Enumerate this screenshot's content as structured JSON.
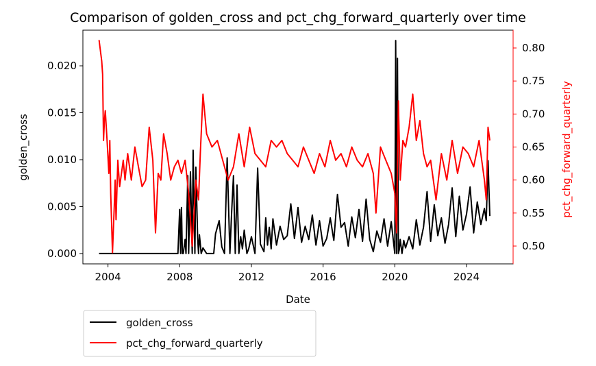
{
  "chart_data": {
    "type": "line",
    "title": "Comparison of golden_cross and pct_chg_forward_quarterly over time",
    "xlabel": "Date",
    "ylabel_left": "golden_cross",
    "ylabel_right": "pct_chg_forward_quarterly",
    "x_ticks": [
      "2004",
      "2008",
      "2012",
      "2016",
      "2020",
      "2024"
    ],
    "x_tick_values": [
      2004,
      2008,
      2012,
      2016,
      2020,
      2024
    ],
    "xlim": [
      2002.6,
      2026.6
    ],
    "y_left_ticks": [
      "0.000",
      "0.005",
      "0.010",
      "0.015",
      "0.020"
    ],
    "y_left_tick_values": [
      0,
      0.005,
      0.01,
      0.015,
      0.02
    ],
    "ylim_left": [
      -0.0011,
      0.0238
    ],
    "y_right_ticks": [
      "0.50",
      "0.55",
      "0.60",
      "0.65",
      "0.70",
      "0.75",
      "0.80"
    ],
    "y_right_tick_values": [
      0.5,
      0.55,
      0.6,
      0.65,
      0.7,
      0.75,
      0.8
    ],
    "ylim_right": [
      0.473,
      0.827
    ],
    "grid": false,
    "legend_placement": "below-left",
    "series": [
      {
        "name": "golden_cross",
        "color": "#000000",
        "axis": "left",
        "x": [
          2003.5,
          2007.9,
          2008.0,
          2008.05,
          2008.1,
          2008.15,
          2008.2,
          2008.3,
          2008.35,
          2008.45,
          2008.5,
          2008.6,
          2008.7,
          2008.75,
          2008.85,
          2008.9,
          2009.0,
          2009.05,
          2009.1,
          2009.2,
          2009.3,
          2009.5,
          2009.7,
          2009.9,
          2010.0,
          2010.2,
          2010.35,
          2010.5,
          2010.65,
          2010.8,
          2010.9,
          2011.0,
          2011.1,
          2011.2,
          2011.3,
          2011.4,
          2011.5,
          2011.6,
          2011.75,
          2011.85,
          2012.0,
          2012.2,
          2012.35,
          2012.5,
          2012.7,
          2012.8,
          2012.9,
          2013.0,
          2013.1,
          2013.2,
          2013.4,
          2013.6,
          2013.8,
          2014.0,
          2014.2,
          2014.4,
          2014.6,
          2014.8,
          2015.0,
          2015.2,
          2015.4,
          2015.6,
          2015.8,
          2016.0,
          2016.2,
          2016.4,
          2016.6,
          2016.8,
          2017.0,
          2017.2,
          2017.4,
          2017.6,
          2017.8,
          2018.0,
          2018.2,
          2018.4,
          2018.6,
          2018.8,
          2019.0,
          2019.2,
          2019.4,
          2019.6,
          2019.8,
          2020.0,
          2020.05,
          2020.1,
          2020.15,
          2020.2,
          2020.25,
          2020.3,
          2020.4,
          2020.5,
          2020.6,
          2020.8,
          2021.0,
          2021.2,
          2021.4,
          2021.6,
          2021.8,
          2022.0,
          2022.2,
          2022.4,
          2022.6,
          2022.8,
          2023.0,
          2023.2,
          2023.4,
          2023.6,
          2023.8,
          2024.0,
          2024.2,
          2024.4,
          2024.6,
          2024.8,
          2025.0,
          2025.1,
          2025.2,
          2025.3
        ],
        "y": [
          0.0,
          0.0,
          0.0047,
          0.0,
          0.0049,
          0.0,
          0.0,
          0.0015,
          0.0,
          0.0083,
          0.0,
          0.0087,
          0.0,
          0.011,
          0.0,
          0.0092,
          0.0017,
          0.0,
          0.002,
          0.0,
          0.0006,
          0.0,
          0.0,
          0.0,
          0.0021,
          0.0035,
          0.0007,
          0.0,
          0.0102,
          0.0,
          0.0045,
          0.0083,
          0.0,
          0.0073,
          0.0,
          0.0018,
          0.0005,
          0.0025,
          0.0,
          0.0005,
          0.0018,
          0.0,
          0.0091,
          0.001,
          0.0002,
          0.0038,
          0.0009,
          0.0028,
          0.0005,
          0.0037,
          0.0009,
          0.0029,
          0.0015,
          0.0019,
          0.0053,
          0.0016,
          0.0049,
          0.0012,
          0.0029,
          0.0015,
          0.0041,
          0.0009,
          0.0035,
          0.0008,
          0.0016,
          0.0038,
          0.0014,
          0.0063,
          0.0028,
          0.0033,
          0.0008,
          0.0039,
          0.0017,
          0.0047,
          0.0013,
          0.0058,
          0.0015,
          0.0002,
          0.0024,
          0.0012,
          0.0037,
          0.0008,
          0.0034,
          0.0,
          0.0227,
          0.0,
          0.0208,
          0.0,
          0.0004,
          0.0015,
          0.0,
          0.0014,
          0.0006,
          0.0018,
          0.0005,
          0.0036,
          0.0009,
          0.0028,
          0.0066,
          0.0013,
          0.0052,
          0.0019,
          0.0038,
          0.0011,
          0.0031,
          0.007,
          0.0018,
          0.0061,
          0.0025,
          0.0042,
          0.0071,
          0.0022,
          0.0055,
          0.0031,
          0.0048,
          0.0035,
          0.0099,
          0.004
        ]
      },
      {
        "name": "pct_chg_forward_quarterly",
        "color": "#ff0000",
        "axis": "right",
        "x": [
          2003.5,
          2003.65,
          2003.7,
          2003.75,
          2003.8,
          2003.85,
          2003.95,
          2004.05,
          2004.1,
          2004.15,
          2004.25,
          2004.35,
          2004.4,
          2004.45,
          2004.55,
          2004.65,
          2004.75,
          2004.85,
          2004.95,
          2005.1,
          2005.3,
          2005.5,
          2005.7,
          2005.9,
          2006.1,
          2006.3,
          2006.5,
          2006.65,
          2006.8,
          2006.95,
          2007.1,
          2007.3,
          2007.5,
          2007.7,
          2007.9,
          2008.1,
          2008.3,
          2008.5,
          2008.7,
          2008.9,
          2009.05,
          2009.15,
          2009.3,
          2009.5,
          2009.8,
          2010.1,
          2010.4,
          2010.7,
          2011.0,
          2011.3,
          2011.6,
          2011.9,
          2012.2,
          2012.5,
          2012.8,
          2013.1,
          2013.4,
          2013.7,
          2014.0,
          2014.3,
          2014.6,
          2014.9,
          2015.2,
          2015.5,
          2015.8,
          2016.1,
          2016.4,
          2016.7,
          2017.0,
          2017.3,
          2017.6,
          2017.9,
          2018.2,
          2018.5,
          2018.8,
          2018.95,
          2019.2,
          2019.5,
          2019.8,
          2020.0,
          2020.1,
          2020.2,
          2020.3,
          2020.45,
          2020.6,
          2020.8,
          2021.0,
          2021.2,
          2021.4,
          2021.6,
          2021.8,
          2022.0,
          2022.3,
          2022.6,
          2022.9,
          2023.2,
          2023.5,
          2023.8,
          2024.1,
          2024.4,
          2024.7,
          2025.0,
          2025.1,
          2025.2,
          2025.3
        ],
        "y": [
          0.812,
          0.78,
          0.76,
          0.66,
          0.69,
          0.705,
          0.66,
          0.61,
          0.66,
          0.58,
          0.49,
          0.56,
          0.6,
          0.54,
          0.63,
          0.59,
          0.61,
          0.63,
          0.6,
          0.64,
          0.6,
          0.65,
          0.62,
          0.59,
          0.6,
          0.68,
          0.63,
          0.52,
          0.61,
          0.6,
          0.67,
          0.64,
          0.6,
          0.62,
          0.63,
          0.61,
          0.63,
          0.58,
          0.5,
          0.6,
          0.57,
          0.64,
          0.73,
          0.67,
          0.65,
          0.66,
          0.63,
          0.6,
          0.62,
          0.67,
          0.62,
          0.68,
          0.64,
          0.63,
          0.62,
          0.66,
          0.65,
          0.66,
          0.64,
          0.63,
          0.62,
          0.65,
          0.63,
          0.61,
          0.64,
          0.62,
          0.66,
          0.63,
          0.64,
          0.62,
          0.65,
          0.63,
          0.62,
          0.64,
          0.61,
          0.55,
          0.65,
          0.63,
          0.61,
          0.58,
          0.52,
          0.72,
          0.6,
          0.66,
          0.65,
          0.68,
          0.73,
          0.66,
          0.69,
          0.64,
          0.62,
          0.63,
          0.57,
          0.64,
          0.6,
          0.66,
          0.61,
          0.65,
          0.64,
          0.62,
          0.66,
          0.6,
          0.57,
          0.68,
          0.66
        ]
      }
    ]
  }
}
